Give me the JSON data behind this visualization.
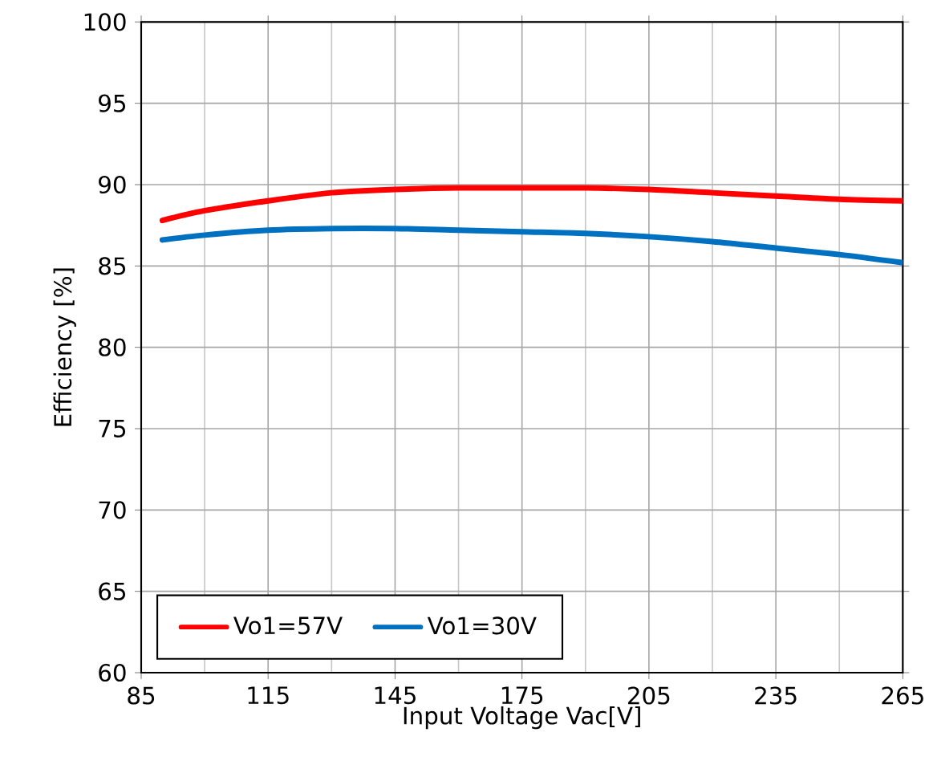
{
  "chart_data": {
    "type": "line",
    "xlabel": "Input Voltage Vac[V]",
    "ylabel": "Efficiency [%]",
    "x": [
      90,
      100,
      115,
      130,
      145,
      160,
      175,
      190,
      205,
      220,
      235,
      250,
      265
    ],
    "series": [
      {
        "name": "Vo1=57V",
        "color": "#ff0000",
        "values": [
          87.8,
          88.4,
          89.0,
          89.5,
          89.7,
          89.8,
          89.8,
          89.8,
          89.7,
          89.5,
          89.3,
          89.1,
          89.0
        ]
      },
      {
        "name": "Vo1=30V",
        "color": "#0070c0",
        "values": [
          86.6,
          86.9,
          87.2,
          87.3,
          87.3,
          87.2,
          87.1,
          87.0,
          86.8,
          86.5,
          86.1,
          85.7,
          85.2
        ]
      }
    ],
    "xlim": [
      85,
      265
    ],
    "xticks": [
      85,
      115,
      145,
      175,
      205,
      235,
      265
    ],
    "ylim": [
      60,
      100
    ],
    "yticks": [
      60,
      65,
      70,
      75,
      80,
      85,
      90,
      95,
      100
    ],
    "grid": true,
    "legend": "bottom left",
    "marker": "none",
    "line_style": "solid"
  }
}
